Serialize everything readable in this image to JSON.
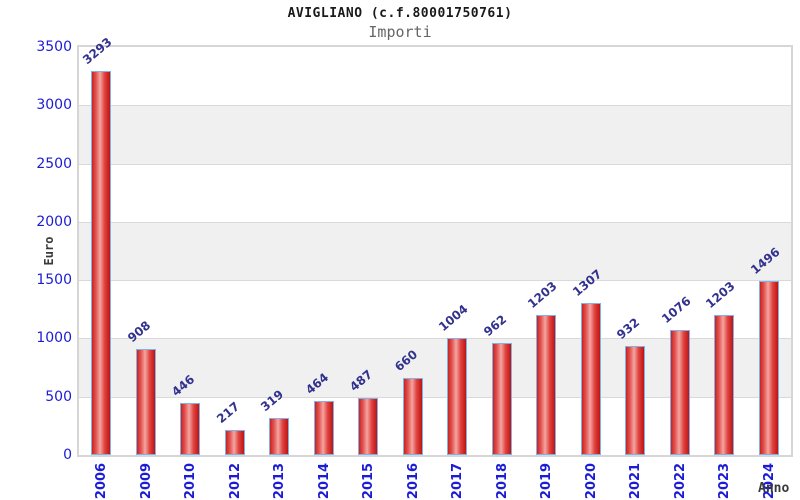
{
  "header": {
    "title": "AVIGLIANO (c.f.80001750761)",
    "subtitle": "Importi"
  },
  "axes": {
    "y_label": "Euro",
    "x_label": "Anno"
  },
  "chart_data": {
    "type": "bar",
    "title": "AVIGLIANO (c.f.80001750761)",
    "subtitle": "Importi",
    "xlabel": "Anno",
    "ylabel": "Euro",
    "categories": [
      "2006",
      "2009",
      "2010",
      "2012",
      "2013",
      "2014",
      "2015",
      "2016",
      "2017",
      "2018",
      "2019",
      "2020",
      "2021",
      "2022",
      "2023",
      "2024"
    ],
    "values": [
      3293,
      908,
      446,
      217,
      319,
      464,
      487,
      660,
      1004,
      962,
      1203,
      1307,
      932,
      1076,
      1203,
      1496
    ],
    "ylim": [
      0,
      3500
    ],
    "y_ticks": [
      0,
      500,
      1000,
      1500,
      2000,
      2500,
      3000,
      3500
    ],
    "grid": "horizontal-500",
    "bands": "alternating-gray-500",
    "legend": "none",
    "bar_value_labels": "rotated-diagonal",
    "x_tick_labels": "rotated-vertical"
  },
  "colors": {
    "background": "#ffffff",
    "band_gray": "#f0f0f0",
    "gridline": "#d9d9d9",
    "plot_border": "#d6d6d6",
    "tick_label_blue": "#1c1cd4",
    "value_label_navy": "#32328e",
    "axis_title_gray": "#3a3a3a",
    "subtitle_gray": "#666666",
    "bar_border_blue": "#7fb2e8",
    "bar_gradient": [
      "#c92320",
      "#e25450",
      "#f4a5a2",
      "#e04340",
      "#bd1511"
    ],
    "bar_gradient_stops": [
      0,
      22,
      45,
      70,
      100
    ]
  }
}
